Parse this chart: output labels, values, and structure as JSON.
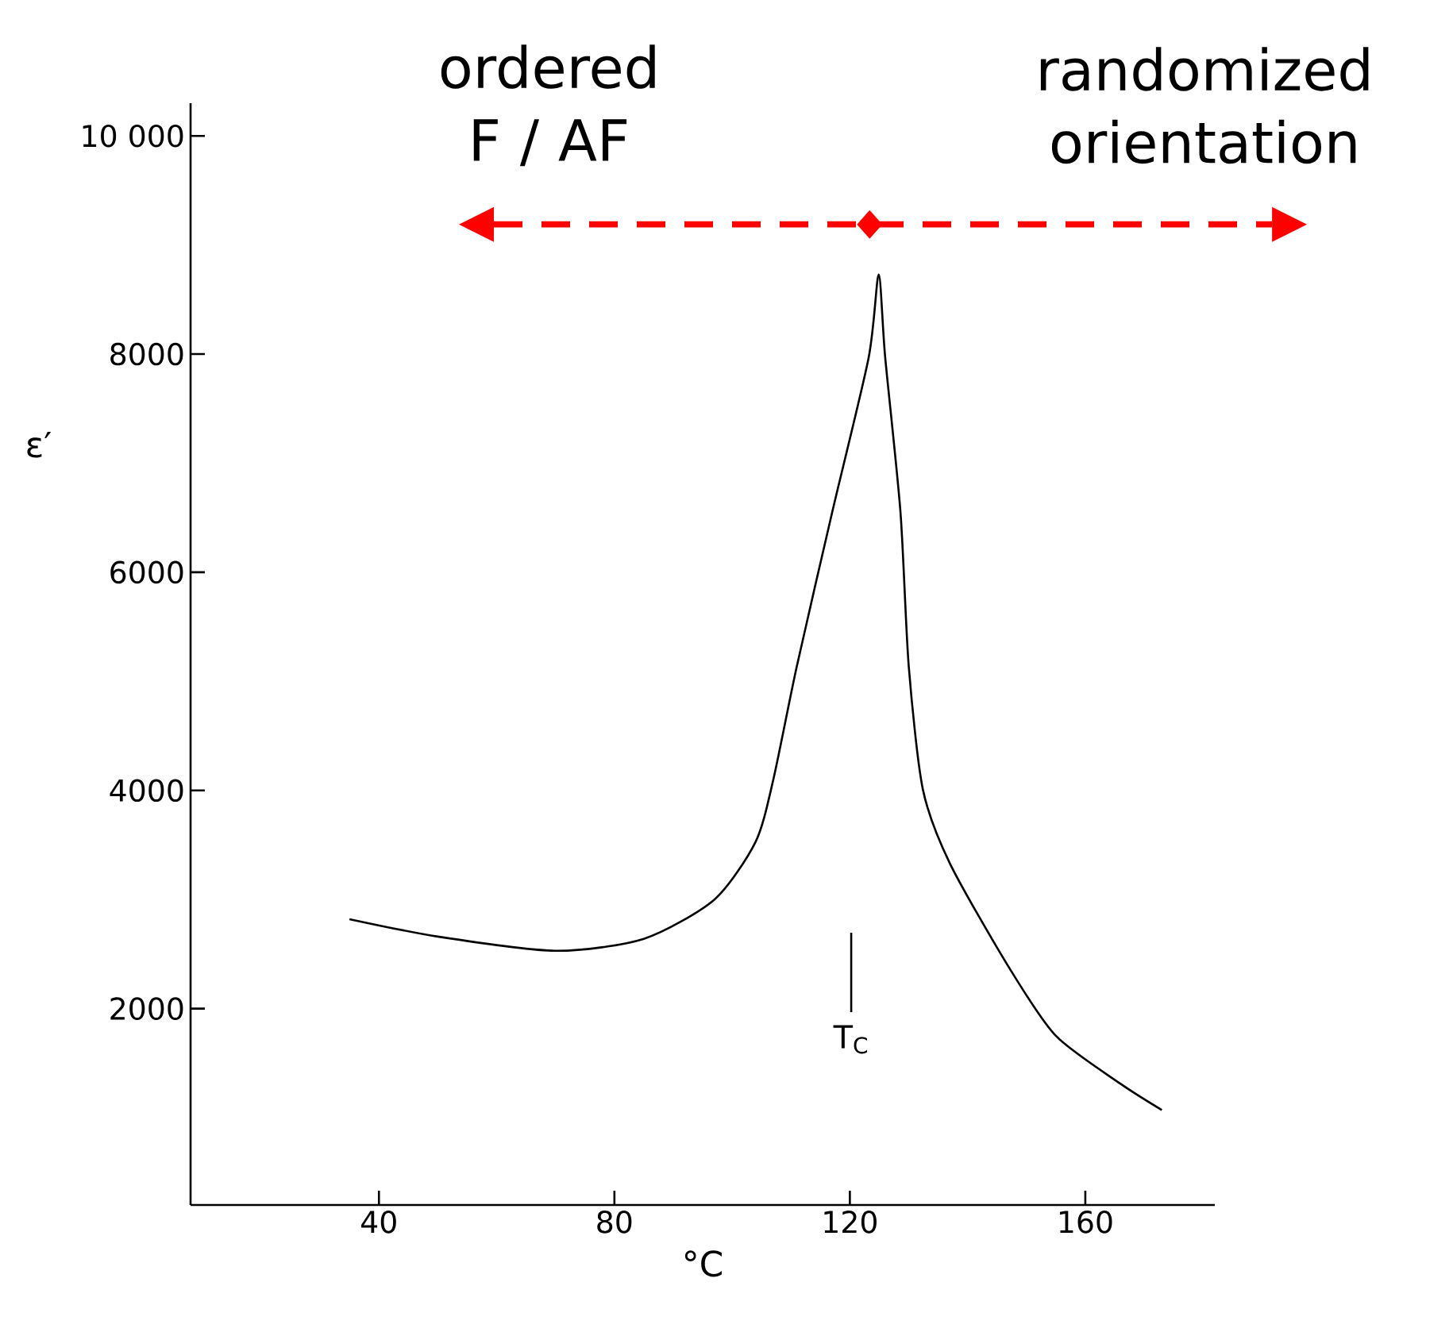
{
  "chart_data": {
    "type": "line",
    "xlabel": "°C",
    "ylabel": "ε′",
    "x": [
      35,
      50,
      70,
      85,
      97,
      104,
      107,
      111,
      117,
      123.2,
      124.9,
      126,
      128.6,
      130,
      132.4,
      137,
      147,
      155,
      166,
      173
    ],
    "series": [
      {
        "color": "#000000",
        "values": [
          2820,
          2660,
          2530,
          2640,
          3000,
          3530,
          4100,
          5140,
          6550,
          7970,
          8730,
          7970,
          6550,
          5140,
          4010,
          3330,
          2380,
          1750,
          1310,
          1070
        ]
      }
    ],
    "xlim": [
      8,
      182
    ],
    "ylim": [
      200,
      10300
    ],
    "xticks": [
      40,
      80,
      120,
      160
    ],
    "yticks": [
      2000,
      4000,
      6000,
      8000,
      {
        "value": 10000,
        "label": "10 000"
      }
    ],
    "grid": false,
    "marker": "none",
    "line_style": "solid",
    "annotations": [
      "ordered F / AF",
      "randomized orientation",
      "T$_{C}$"
    ]
  }
}
